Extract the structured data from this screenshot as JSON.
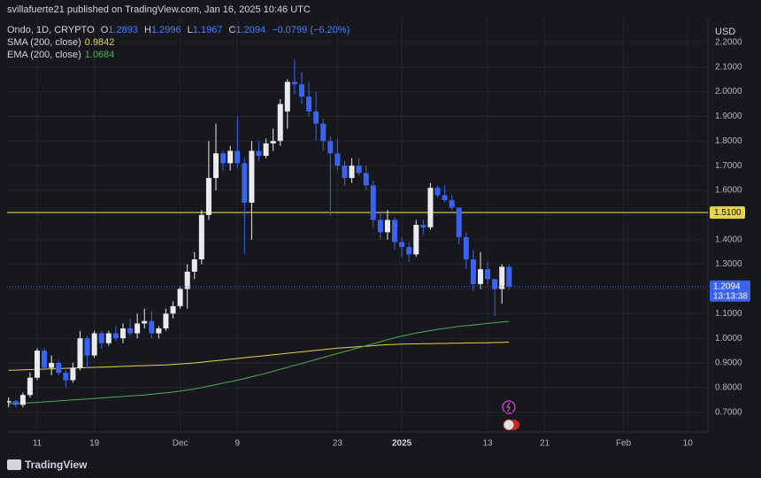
{
  "header": {
    "publisher": "svillafuerte21 published on TradingView.com, Jan 16, 2025 10:46 UTC",
    "symbol": "Ondo, 1D, CRYPTO",
    "o": "O",
    "h": "H",
    "l": "L",
    "c": "C",
    "change": "−0.0799 (−6.20%)",
    "currency": "USD",
    "brand": "TradingView"
  },
  "chart_data": {
    "type": "candlestick",
    "x": [
      "2024-11-07",
      "2024-11-08",
      "2024-11-09",
      "2024-11-10",
      "2024-11-11",
      "2024-11-12",
      "2024-11-13",
      "2024-11-14",
      "2024-11-15",
      "2024-11-16",
      "2024-11-17",
      "2024-11-18",
      "2024-11-19",
      "2024-11-20",
      "2024-11-21",
      "2024-11-22",
      "2024-11-23",
      "2024-11-24",
      "2024-11-25",
      "2024-11-26",
      "2024-11-27",
      "2024-11-28",
      "2024-11-29",
      "2024-11-30",
      "2024-12-01",
      "2024-12-02",
      "2024-12-03",
      "2024-12-04",
      "2024-12-05",
      "2024-12-06",
      "2024-12-07",
      "2024-12-08",
      "2024-12-09",
      "2024-12-10",
      "2024-12-11",
      "2024-12-12",
      "2024-12-13",
      "2024-12-14",
      "2024-12-15",
      "2024-12-16",
      "2024-12-17",
      "2024-12-18",
      "2024-12-19",
      "2024-12-20",
      "2024-12-21",
      "2024-12-22",
      "2024-12-23",
      "2024-12-24",
      "2024-12-25",
      "2024-12-26",
      "2024-12-27",
      "2024-12-28",
      "2024-12-29",
      "2024-12-30",
      "2024-12-31",
      "2025-01-01",
      "2025-01-02",
      "2025-01-03",
      "2025-01-04",
      "2025-01-05",
      "2025-01-06",
      "2025-01-07",
      "2025-01-08",
      "2025-01-09",
      "2025-01-10",
      "2025-01-11",
      "2025-01-12",
      "2025-01-13",
      "2025-01-14",
      "2025-01-15",
      "2025-01-16"
    ],
    "open": [
      0.74,
      0.745,
      0.73,
      0.77,
      0.84,
      0.95,
      0.88,
      0.9,
      0.86,
      0.83,
      0.88,
      1.0,
      0.93,
      1.02,
      0.98,
      1.02,
      1.0,
      1.04,
      1.02,
      1.06,
      1.07,
      1.02,
      1.04,
      1.1,
      1.13,
      1.2,
      1.27,
      1.32,
      1.5,
      1.65,
      1.75,
      1.71,
      1.76,
      1.71,
      1.55,
      1.76,
      1.74,
      1.79,
      1.8,
      1.92,
      2.04,
      2.03,
      1.98,
      1.92,
      1.87,
      1.8,
      1.75,
      1.7,
      1.65,
      1.7,
      1.67,
      1.62,
      1.48,
      1.43,
      1.48,
      1.39,
      1.37,
      1.34,
      1.46,
      1.45,
      1.61,
      1.58,
      1.56,
      1.53,
      1.41,
      1.32,
      1.22,
      1.28,
      1.24,
      1.2,
      1.2893
    ],
    "high": [
      0.76,
      0.75,
      0.78,
      0.86,
      0.96,
      0.96,
      0.93,
      0.91,
      0.87,
      0.9,
      1.03,
      1.01,
      1.03,
      1.03,
      1.03,
      1.05,
      1.06,
      1.08,
      1.1,
      1.12,
      1.11,
      1.05,
      1.12,
      1.15,
      1.21,
      1.3,
      1.35,
      1.52,
      1.8,
      1.87,
      1.76,
      1.78,
      1.9,
      1.73,
      1.8,
      1.8,
      1.81,
      1.85,
      1.97,
      2.05,
      2.13,
      2.08,
      2.04,
      2.0,
      1.89,
      1.82,
      1.81,
      1.72,
      1.73,
      1.73,
      1.7,
      1.64,
      1.51,
      1.52,
      1.49,
      1.41,
      1.39,
      1.48,
      1.48,
      1.63,
      1.62,
      1.62,
      1.58,
      1.53,
      1.43,
      1.36,
      1.35,
      1.31,
      1.24,
      1.3,
      1.2996
    ],
    "low": [
      0.72,
      0.72,
      0.72,
      0.76,
      0.83,
      0.87,
      0.85,
      0.85,
      0.8,
      0.82,
      0.87,
      0.88,
      0.92,
      0.96,
      0.97,
      0.99,
      0.98,
      1.01,
      1.0,
      1.04,
      1.0,
      1.0,
      1.03,
      1.08,
      1.12,
      1.12,
      1.24,
      1.3,
      1.48,
      1.6,
      1.68,
      1.68,
      1.69,
      1.34,
      1.4,
      1.72,
      1.73,
      1.76,
      1.78,
      1.85,
      1.99,
      1.95,
      1.9,
      1.8,
      1.76,
      1.5,
      1.68,
      1.62,
      1.63,
      1.66,
      1.6,
      1.45,
      1.4,
      1.4,
      1.36,
      1.33,
      1.31,
      1.33,
      1.42,
      1.44,
      1.57,
      1.55,
      1.52,
      1.38,
      1.28,
      1.19,
      1.2,
      1.22,
      1.09,
      1.14,
      1.1967
    ],
    "close": [
      0.745,
      0.73,
      0.77,
      0.84,
      0.95,
      0.88,
      0.9,
      0.86,
      0.83,
      0.88,
      1.0,
      0.93,
      1.02,
      0.98,
      1.02,
      1.0,
      1.04,
      1.02,
      1.06,
      1.07,
      1.02,
      1.04,
      1.1,
      1.13,
      1.2,
      1.27,
      1.32,
      1.5,
      1.65,
      1.75,
      1.71,
      1.76,
      1.71,
      1.55,
      1.76,
      1.74,
      1.79,
      1.8,
      1.95,
      2.04,
      2.03,
      1.98,
      1.92,
      1.87,
      1.8,
      1.75,
      1.7,
      1.65,
      1.7,
      1.67,
      1.62,
      1.48,
      1.43,
      1.48,
      1.39,
      1.37,
      1.34,
      1.46,
      1.45,
      1.61,
      1.58,
      1.56,
      1.53,
      1.41,
      1.32,
      1.22,
      1.28,
      1.24,
      1.2,
      1.29,
      1.2094
    ],
    "up_color": "#e9eaee",
    "down_color": "#3a63f0",
    "series": [
      {
        "name": "SMA (200, close)",
        "color": "#e6d449",
        "values": [
          0.87,
          0.871,
          0.872,
          0.873,
          0.874,
          0.875,
          0.876,
          0.877,
          0.878,
          0.879,
          0.88,
          0.881,
          0.882,
          0.883,
          0.884,
          0.885,
          0.886,
          0.887,
          0.888,
          0.889,
          0.89,
          0.891,
          0.892,
          0.894,
          0.896,
          0.898,
          0.9,
          0.903,
          0.906,
          0.909,
          0.912,
          0.915,
          0.918,
          0.921,
          0.924,
          0.927,
          0.93,
          0.933,
          0.936,
          0.939,
          0.942,
          0.945,
          0.948,
          0.951,
          0.954,
          0.957,
          0.96,
          0.962,
          0.964,
          0.966,
          0.968,
          0.97,
          0.972,
          0.974,
          0.975,
          0.976,
          0.977,
          0.977,
          0.978,
          0.978,
          0.979,
          0.979,
          0.98,
          0.98,
          0.981,
          0.981,
          0.982,
          0.982,
          0.983,
          0.983,
          0.9842
        ]
      },
      {
        "name": "EMA (200, close)",
        "color": "#4caf50",
        "values": [
          0.735,
          0.736,
          0.737,
          0.738,
          0.74,
          0.742,
          0.744,
          0.746,
          0.748,
          0.75,
          0.752,
          0.754,
          0.756,
          0.758,
          0.76,
          0.762,
          0.764,
          0.766,
          0.768,
          0.77,
          0.773,
          0.776,
          0.779,
          0.782,
          0.786,
          0.79,
          0.795,
          0.8,
          0.806,
          0.812,
          0.818,
          0.824,
          0.83,
          0.837,
          0.844,
          0.851,
          0.858,
          0.866,
          0.874,
          0.882,
          0.89,
          0.898,
          0.906,
          0.914,
          0.922,
          0.93,
          0.938,
          0.946,
          0.954,
          0.962,
          0.97,
          0.978,
          0.986,
          0.994,
          1.002,
          1.009,
          1.015,
          1.021,
          1.026,
          1.031,
          1.036,
          1.04,
          1.044,
          1.048,
          1.051,
          1.054,
          1.057,
          1.06,
          1.063,
          1.066,
          1.0684
        ]
      }
    ],
    "hline": {
      "value": 1.51,
      "label": "1.5100",
      "color": "#e6d449"
    },
    "countdown": "13:13:38",
    "ylim": [
      0.62,
      2.3
    ],
    "yticks": [
      {
        "value": 0.7,
        "label": "0.7000"
      },
      {
        "value": 0.8,
        "label": "0.8000"
      },
      {
        "value": 0.9,
        "label": "0.9000"
      },
      {
        "value": 1.0,
        "label": "1.0000"
      },
      {
        "value": 1.1,
        "label": "1.1000"
      },
      {
        "value": 1.2,
        "label": "1.2000"
      },
      {
        "value": 1.3,
        "label": "1.3000"
      },
      {
        "value": 1.4,
        "label": "1.4000"
      },
      {
        "value": 1.5,
        "label": "1.5000"
      },
      {
        "value": 1.6,
        "label": "1.6000"
      },
      {
        "value": 1.7,
        "label": "1.7000"
      },
      {
        "value": 1.8,
        "label": "1.8000"
      },
      {
        "value": 1.9,
        "label": "1.9000"
      },
      {
        "value": 2.0,
        "label": "2.0000"
      },
      {
        "value": 2.1,
        "label": "2.1000"
      },
      {
        "value": 2.2,
        "label": "2.2000"
      }
    ],
    "xticks": [
      {
        "value": "2024-11-11",
        "label": "11"
      },
      {
        "value": "2024-11-19",
        "label": "19"
      },
      {
        "value": "2024-12-01",
        "label": "Dec"
      },
      {
        "value": "2024-12-09",
        "label": "9"
      },
      {
        "value": "2024-12-23",
        "label": "23"
      },
      {
        "value": "2025-01-01",
        "label": "2025"
      },
      {
        "value": "2025-01-13",
        "label": "13"
      },
      {
        "value": "2025-01-21",
        "label": "21"
      },
      {
        "value": "2025-02-01",
        "label": "Feb"
      },
      {
        "value": "2025-02-10",
        "label": "10"
      }
    ],
    "grid": true
  }
}
